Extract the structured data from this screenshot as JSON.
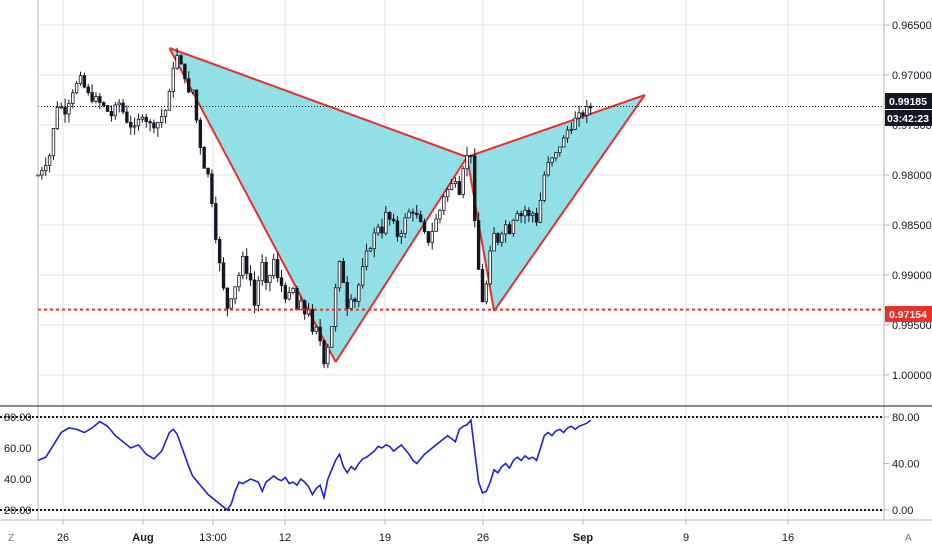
{
  "price_axis": {
    "ticks": [
      "1.00000",
      "0.99500",
      "0.99000",
      "0.98500",
      "0.98000",
      "0.97500",
      "0.97000",
      "0.96500"
    ],
    "current_price_label": "0.99185",
    "countdown_label": "03:42:23",
    "level_label": "0.97154"
  },
  "rsi_axis": {
    "left_ticks": [
      "80.00",
      "60.00",
      "40.00",
      "20.00"
    ],
    "right_ticks": [
      "80.00",
      "40.00",
      "0.00"
    ]
  },
  "time_axis": {
    "ticks": [
      "26",
      "Aug",
      "13:00",
      "12",
      "19",
      "26",
      "Sep",
      "9",
      "16"
    ]
  },
  "corner_labels": {
    "left": "Z",
    "right": "A"
  },
  "colors": {
    "candle": "#131722",
    "pattern_fill": "#7fdbe3",
    "pattern_stroke": "#e8302b",
    "level_line": "#e8302b",
    "price_line": "#131722",
    "rsi_line": "#2121d4",
    "grid": "#e0e3eb"
  },
  "chart_data": [
    {
      "type": "candlestick",
      "x_labels": [
        "26",
        "Aug",
        "13:00",
        "12",
        "19",
        "26",
        "Sep",
        "9",
        "16"
      ],
      "ylim": [
        0.9625,
        1.0025
      ],
      "y_ticks": [
        0.965,
        0.97,
        0.975,
        0.98,
        0.985,
        0.99,
        0.995,
        1.0
      ],
      "grid": true,
      "current_price": 0.99185,
      "horizontal_level": 0.97154,
      "close_path": [
        [
          0,
          0.985
        ],
        [
          3,
          0.987
        ],
        [
          5,
          0.992
        ],
        [
          7,
          0.9915
        ],
        [
          9,
          0.9935
        ],
        [
          11,
          0.9945
        ],
        [
          13,
          0.993
        ],
        [
          15,
          0.9925
        ],
        [
          17,
          0.9918
        ],
        [
          19,
          0.991
        ],
        [
          21,
          0.9922
        ],
        [
          23,
          0.9905
        ],
        [
          25,
          0.9895
        ],
        [
          27,
          0.9912
        ],
        [
          29,
          0.99
        ],
        [
          31,
          0.9903
        ],
        [
          33,
          0.9915
        ],
        [
          34,
          0.993
        ],
        [
          35,
          0.996
        ],
        [
          36,
          0.9968
        ],
        [
          37,
          0.9958
        ],
        [
          38,
          0.995
        ],
        [
          39,
          0.993
        ],
        [
          40,
          0.9935
        ],
        [
          41,
          0.9905
        ],
        [
          42,
          0.988
        ],
        [
          43,
          0.986
        ],
        [
          44,
          0.985
        ],
        [
          45,
          0.9825
        ],
        [
          46,
          0.979
        ],
        [
          47,
          0.976
        ],
        [
          48,
          0.9735
        ],
        [
          49,
          0.9718
        ],
        [
          50,
          0.973
        ],
        [
          51,
          0.974
        ],
        [
          52,
          0.975
        ],
        [
          53,
          0.9765
        ],
        [
          54,
          0.9755
        ],
        [
          55,
          0.9745
        ],
        [
          56,
          0.972
        ],
        [
          57,
          0.9745
        ],
        [
          58,
          0.976
        ],
        [
          59,
          0.9738
        ],
        [
          60,
          0.975
        ],
        [
          61,
          0.9765
        ],
        [
          62,
          0.9745
        ],
        [
          63,
          0.974
        ],
        [
          64,
          0.973
        ],
        [
          65,
          0.9728
        ],
        [
          66,
          0.9735
        ],
        [
          67,
          0.9715
        ],
        [
          68,
          0.972
        ],
        [
          69,
          0.9712
        ],
        [
          70,
          0.9718
        ],
        [
          71,
          0.969
        ],
        [
          72,
          0.9695
        ],
        [
          73,
          0.9685
        ],
        [
          74,
          0.9665
        ],
        [
          75,
          0.968
        ],
        [
          76,
          0.97
        ],
        [
          77,
          0.9735
        ],
        [
          78,
          0.976
        ],
        [
          79,
          0.9745
        ],
        [
          80,
          0.972
        ],
        [
          81,
          0.973
        ],
        [
          82,
          0.9725
        ],
        [
          83,
          0.974
        ],
        [
          84,
          0.9755
        ],
        [
          85,
          0.977
        ],
        [
          86,
          0.978
        ],
        [
          87,
          0.979
        ],
        [
          88,
          0.98
        ],
        [
          89,
          0.9795
        ],
        [
          90,
          0.981
        ],
        [
          91,
          0.9805
        ],
        [
          92,
          0.98
        ],
        [
          93,
          0.979
        ],
        [
          94,
          0.9795
        ],
        [
          95,
          0.9805
        ],
        [
          96,
          0.9812
        ],
        [
          97,
          0.9815
        ],
        [
          98,
          0.9808
        ],
        [
          99,
          0.98
        ],
        [
          100,
          0.979
        ],
        [
          101,
          0.9785
        ],
        [
          102,
          0.9795
        ],
        [
          103,
          0.9805
        ],
        [
          104,
          0.9815
        ],
        [
          105,
          0.983
        ],
        [
          106,
          0.9835
        ],
        [
          107,
          0.984
        ],
        [
          108,
          0.9848
        ],
        [
          109,
          0.9835
        ],
        [
          110,
          0.986
        ],
        [
          111,
          0.9868
        ],
        [
          112,
          0.9872
        ],
        [
          113,
          0.98
        ],
        [
          114,
          0.9755
        ],
        [
          115,
          0.9725
        ],
        [
          116,
          0.974
        ],
        [
          117,
          0.977
        ],
        [
          118,
          0.979
        ],
        [
          119,
          0.9785
        ],
        [
          120,
          0.9795
        ],
        [
          121,
          0.98
        ],
        [
          122,
          0.9795
        ],
        [
          123,
          0.9808
        ],
        [
          124,
          0.9815
        ],
        [
          125,
          0.981
        ],
        [
          126,
          0.9815
        ],
        [
          127,
          0.9808
        ],
        [
          128,
          0.9812
        ],
        [
          129,
          0.9805
        ],
        [
          130,
          0.9825
        ],
        [
          131,
          0.985
        ],
        [
          132,
          0.986
        ],
        [
          133,
          0.9865
        ],
        [
          134,
          0.987
        ],
        [
          135,
          0.988
        ],
        [
          136,
          0.9885
        ],
        [
          137,
          0.9895
        ],
        [
          138,
          0.99
        ],
        [
          139,
          0.9905
        ],
        [
          140,
          0.9908
        ],
        [
          141,
          0.9912
        ],
        [
          142,
          0.9915
        ],
        [
          143,
          0.9918
        ]
      ],
      "pattern": {
        "type": "harmonic-bat",
        "points": [
          {
            "bar": 34,
            "price": 0.9977
          },
          {
            "bar": 77,
            "price": 0.9663
          },
          {
            "bar": 111,
            "price": 0.9868
          },
          {
            "bar": 118,
            "price": 0.9714
          },
          {
            "bar": 157,
            "price": 0.993
          }
        ]
      }
    },
    {
      "type": "line",
      "name": "RSI",
      "left_ticks": [
        80,
        60,
        40,
        20
      ],
      "right_ticks": [
        80,
        40,
        0
      ],
      "bands": [
        80,
        20
      ],
      "values": [
        [
          0,
          52
        ],
        [
          2,
          54
        ],
        [
          4,
          62
        ],
        [
          6,
          70
        ],
        [
          8,
          73
        ],
        [
          10,
          72
        ],
        [
          12,
          70
        ],
        [
          14,
          73
        ],
        [
          16,
          77
        ],
        [
          18,
          74
        ],
        [
          20,
          68
        ],
        [
          22,
          64
        ],
        [
          24,
          60
        ],
        [
          26,
          62
        ],
        [
          28,
          56
        ],
        [
          30,
          53
        ],
        [
          32,
          58
        ],
        [
          34,
          70
        ],
        [
          35,
          72
        ],
        [
          36,
          69
        ],
        [
          37,
          62
        ],
        [
          38,
          55
        ],
        [
          39,
          48
        ],
        [
          40,
          42
        ],
        [
          42,
          36
        ],
        [
          44,
          30
        ],
        [
          46,
          26
        ],
        [
          48,
          22
        ],
        [
          49,
          20
        ],
        [
          50,
          24
        ],
        [
          51,
          32
        ],
        [
          52,
          38
        ],
        [
          53,
          37
        ],
        [
          55,
          40
        ],
        [
          57,
          38
        ],
        [
          58,
          32
        ],
        [
          59,
          38
        ],
        [
          61,
          42
        ],
        [
          62,
          40
        ],
        [
          63,
          39
        ],
        [
          64,
          41
        ],
        [
          65,
          37
        ],
        [
          66,
          38
        ],
        [
          67,
          36
        ],
        [
          68,
          40
        ],
        [
          69,
          38
        ],
        [
          70,
          35
        ],
        [
          71,
          30
        ],
        [
          72,
          34
        ],
        [
          73,
          36
        ],
        [
          74,
          28
        ],
        [
          75,
          40
        ],
        [
          76,
          46
        ],
        [
          77,
          52
        ],
        [
          78,
          56
        ],
        [
          79,
          48
        ],
        [
          80,
          44
        ],
        [
          81,
          48
        ],
        [
          82,
          46
        ],
        [
          83,
          50
        ],
        [
          84,
          53
        ],
        [
          85,
          54
        ],
        [
          86,
          56
        ],
        [
          87,
          58
        ],
        [
          88,
          61
        ],
        [
          89,
          60
        ],
        [
          90,
          62
        ],
        [
          91,
          61
        ],
        [
          92,
          58
        ],
        [
          93,
          60
        ],
        [
          94,
          62
        ],
        [
          95,
          59
        ],
        [
          96,
          56
        ],
        [
          97,
          52
        ],
        [
          98,
          50
        ],
        [
          99,
          53
        ],
        [
          100,
          56
        ],
        [
          101,
          58
        ],
        [
          102,
          60
        ],
        [
          103,
          62
        ],
        [
          104,
          64
        ],
        [
          105,
          66
        ],
        [
          106,
          68
        ],
        [
          107,
          66
        ],
        [
          108,
          64
        ],
        [
          109,
          72
        ],
        [
          110,
          74
        ],
        [
          111,
          75
        ],
        [
          112,
          78
        ],
        [
          113,
          58
        ],
        [
          114,
          38
        ],
        [
          115,
          31
        ],
        [
          116,
          32
        ],
        [
          117,
          38
        ],
        [
          118,
          46
        ],
        [
          119,
          44
        ],
        [
          120,
          48
        ],
        [
          121,
          50
        ],
        [
          122,
          47
        ],
        [
          123,
          52
        ],
        [
          124,
          54
        ],
        [
          125,
          52
        ],
        [
          126,
          55
        ],
        [
          127,
          53
        ],
        [
          128,
          54
        ],
        [
          129,
          52
        ],
        [
          130,
          60
        ],
        [
          131,
          68
        ],
        [
          132,
          70
        ],
        [
          133,
          68
        ],
        [
          134,
          71
        ],
        [
          135,
          72
        ],
        [
          136,
          70
        ],
        [
          137,
          73
        ],
        [
          138,
          74
        ],
        [
          139,
          72
        ],
        [
          140,
          74
        ],
        [
          141,
          75
        ],
        [
          142,
          76
        ],
        [
          143,
          78
        ]
      ]
    }
  ]
}
